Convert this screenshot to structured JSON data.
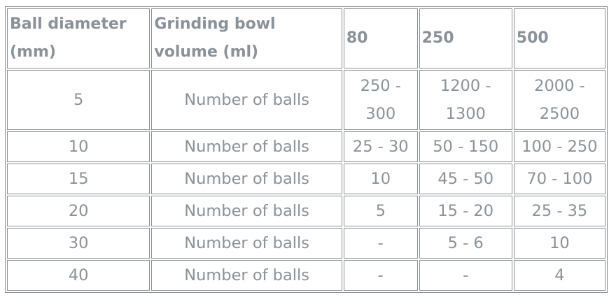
{
  "table": {
    "headers": [
      "Ball diameter (mm)",
      "Grinding bowl volume (ml)",
      "80",
      "250",
      "500"
    ],
    "rows": [
      [
        "5",
        "Number of balls",
        "250 - 300",
        "1200 - 1300",
        "2000 - 2500"
      ],
      [
        "10",
        "Number of balls",
        "25 - 30",
        "50 - 150",
        "100 - 250"
      ],
      [
        "15",
        "Number of balls",
        "10",
        "45 - 50",
        "70 - 100"
      ],
      [
        "20",
        "Number of balls",
        "5",
        "15 - 20",
        "25 - 35"
      ],
      [
        "30",
        "Number of balls",
        "-",
        "5 - 6",
        "10"
      ],
      [
        "40",
        "Number of balls",
        "-",
        "-",
        "4"
      ]
    ]
  },
  "colors": {
    "text": "#8a9299",
    "border": "#8a8f94",
    "background": "#ffffff"
  }
}
